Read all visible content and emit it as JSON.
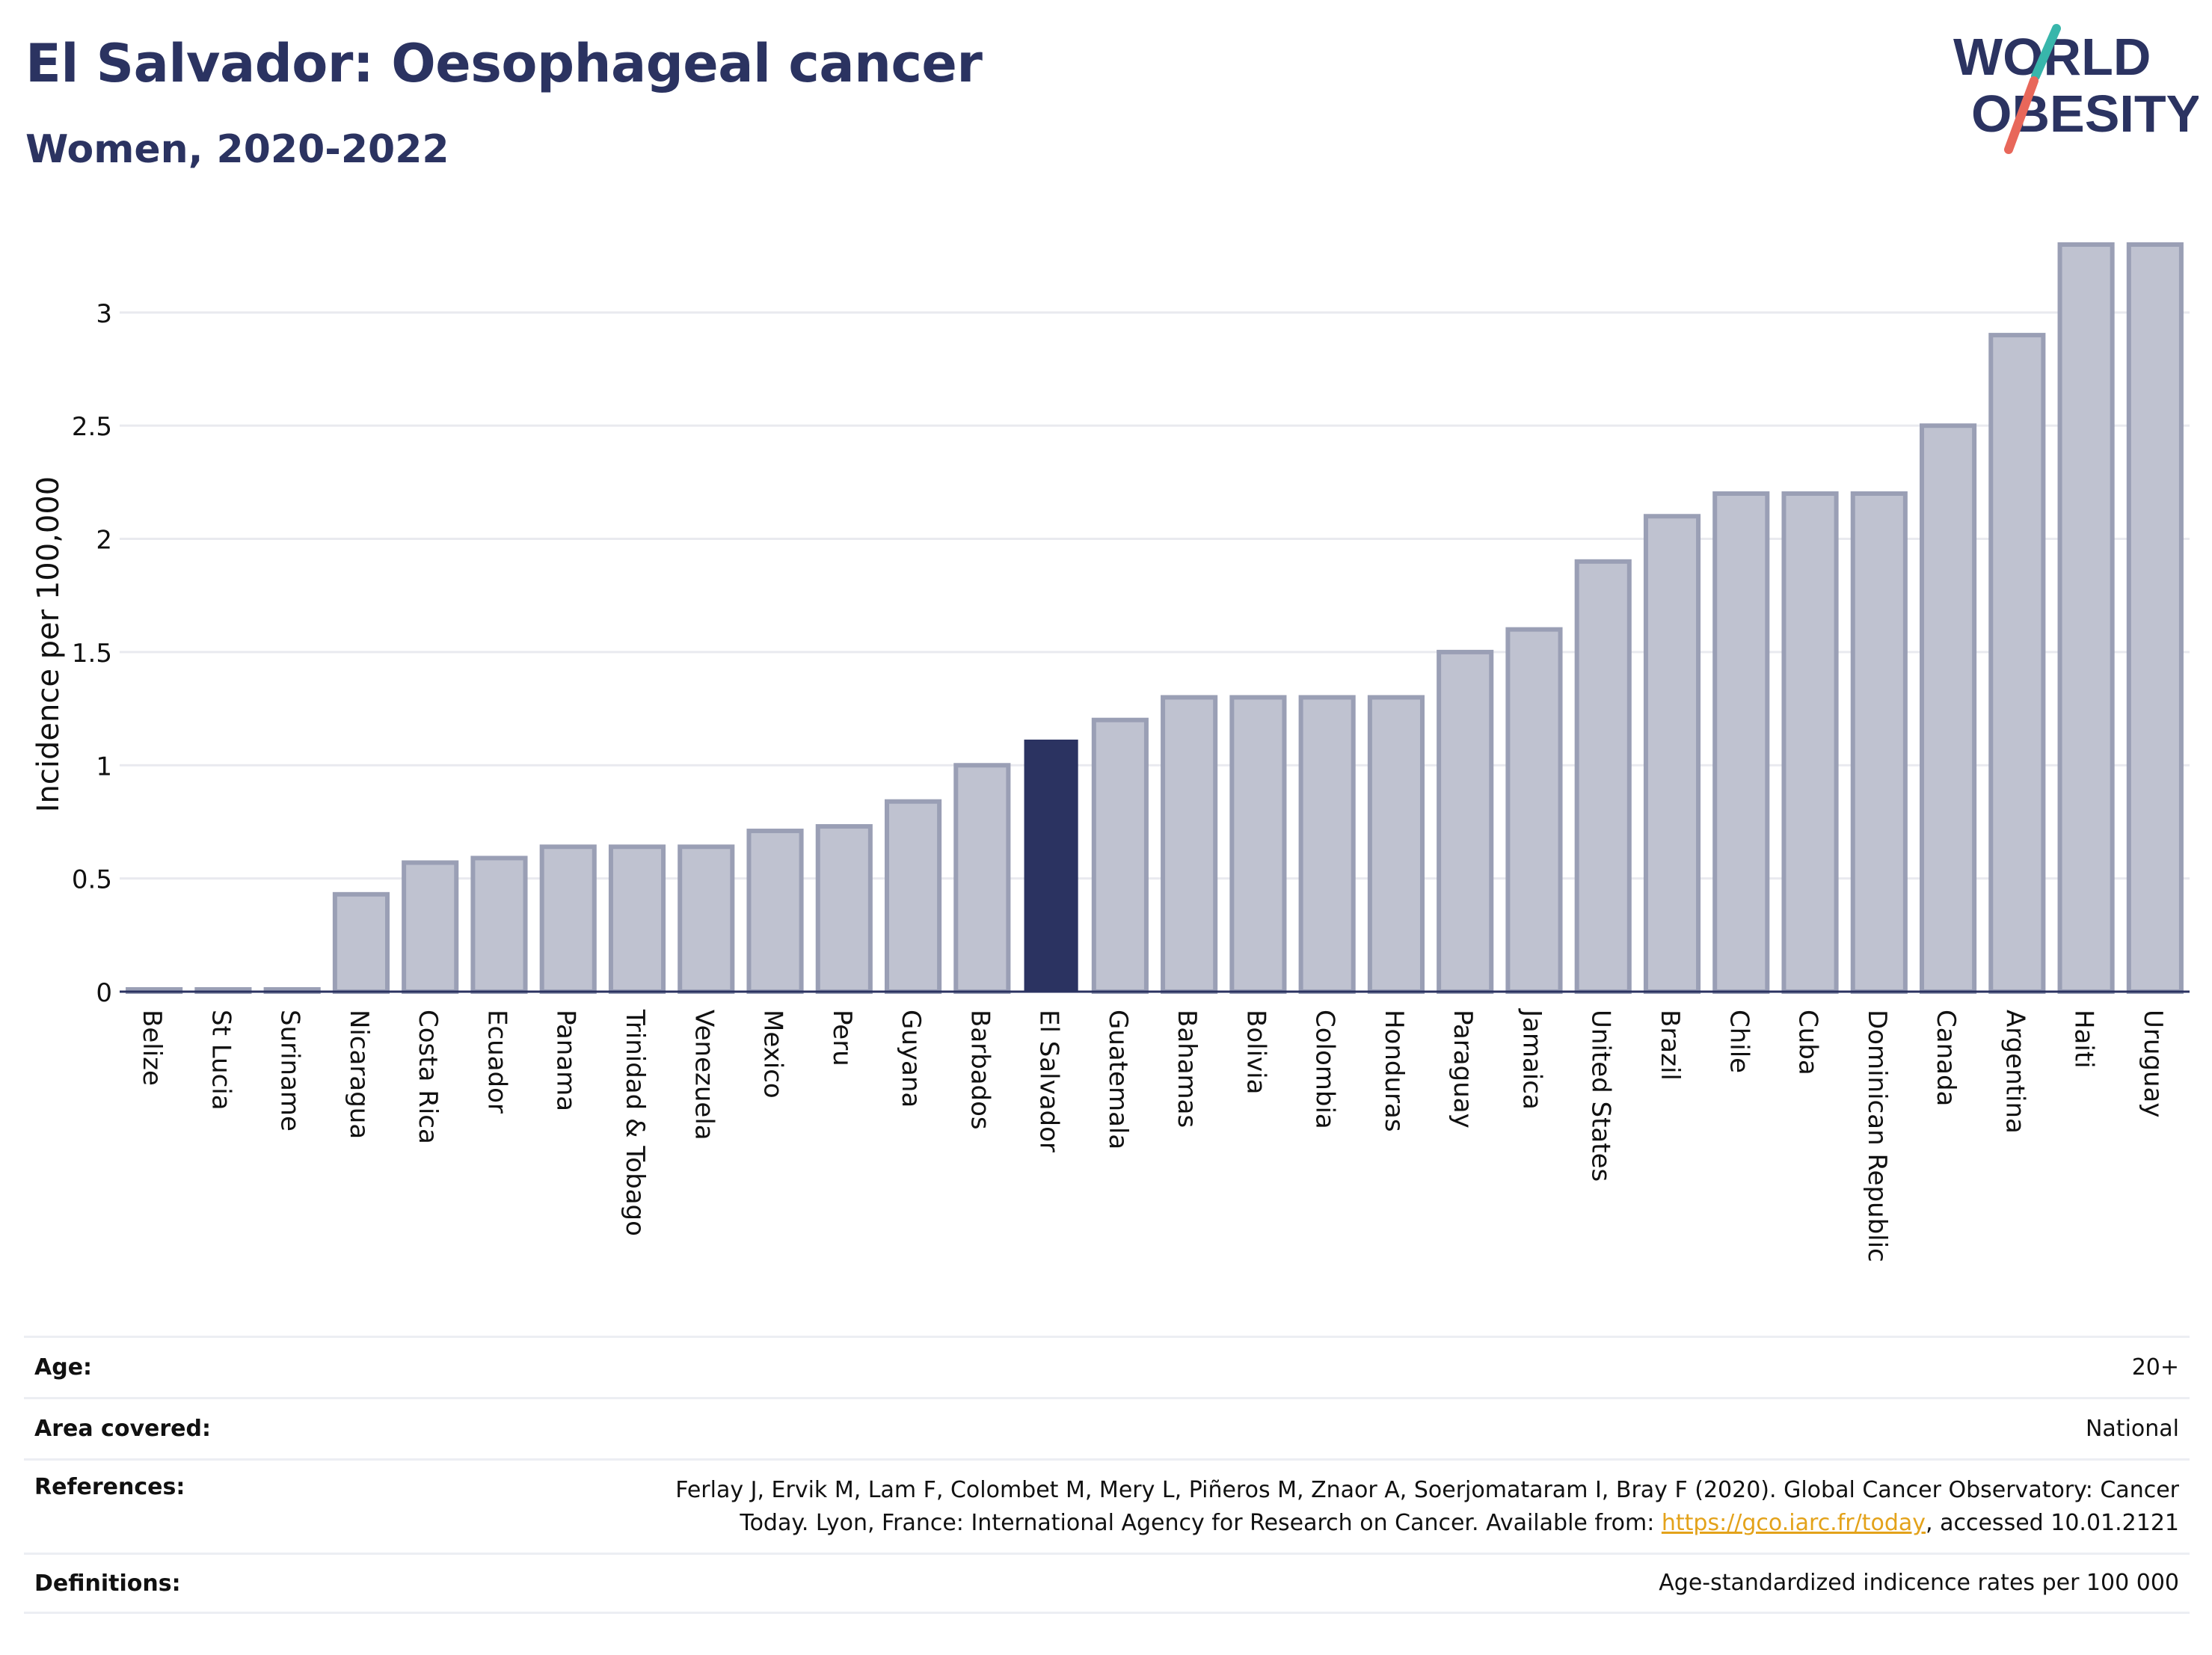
{
  "header": {
    "title": "El Salvador: Oesophageal cancer",
    "subtitle": "Women, 2020-2022"
  },
  "logo": {
    "line1": "WORLD",
    "line2": "OBESITY"
  },
  "colors": {
    "title": "#2b3361",
    "highlight_bar": "#2b3361",
    "bar_fill": "#bfc2d0",
    "bar_stroke": "#9a9fb5",
    "grid": "#e9eaef",
    "link": "#e3a21a",
    "logo_teal": "#38b6ab",
    "logo_coral": "#e8675a"
  },
  "chart_data": {
    "type": "bar",
    "ylabel": "Incidence per 100,000",
    "ylim": [
      0,
      3.3
    ],
    "yticks": [
      "0",
      "0.5",
      "1",
      "1.5",
      "2",
      "2.5",
      "3"
    ],
    "highlight": "El Salvador",
    "categories": [
      "Belize",
      "St Lucia",
      "Suriname",
      "Nicaragua",
      "Costa Rica",
      "Ecuador",
      "Panama",
      "Trinidad & Tobago",
      "Venezuela",
      "Mexico",
      "Peru",
      "Guyana",
      "Barbados",
      "El Salvador",
      "Guatemala",
      "Bahamas",
      "Bolivia",
      "Colombia",
      "Honduras",
      "Paraguay",
      "Jamaica",
      "United States",
      "Brazil",
      "Chile",
      "Cuba",
      "Dominican Republic",
      "Canada",
      "Argentina",
      "Haiti",
      "Uruguay"
    ],
    "values": [
      0.0,
      0.0,
      0.0,
      0.43,
      0.57,
      0.59,
      0.64,
      0.64,
      0.64,
      0.71,
      0.73,
      0.84,
      1.0,
      1.11,
      1.2,
      1.3,
      1.3,
      1.3,
      1.3,
      1.5,
      1.6,
      1.9,
      2.1,
      2.2,
      2.2,
      2.2,
      2.5,
      2.9,
      3.3,
      3.3
    ]
  },
  "info": {
    "age_label": "Age:",
    "age_value": "20+",
    "area_label": "Area covered:",
    "area_value": "National",
    "references_label": "References:",
    "references_line1": "Ferlay J, Ervik M, Lam F, Colombet M, Mery L, Piñeros M, Znaor A, Soerjomataram I, Bray F (2020). Global Cancer Observatory: Cancer",
    "references_line2_pre": "Today. Lyon, France: International Agency for Research on Cancer. Available from: ",
    "references_link": "https://gco.iarc.fr/today",
    "references_line2_post": ", accessed 10.01.2121",
    "definitions_label": "Definitions:",
    "definitions_value": "Age-standardized indicence rates per 100 000"
  }
}
